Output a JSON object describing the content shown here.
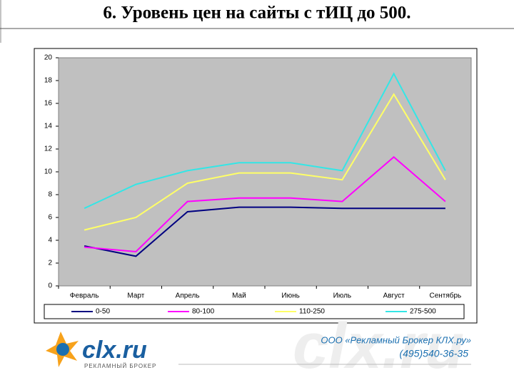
{
  "chart_data": {
    "type": "line",
    "title": "6. Уровень цен на сайты с тИЦ до 500.",
    "categories": [
      "Февраль",
      "Март",
      "Апрель",
      "Май",
      "Июнь",
      "Июль",
      "Август",
      "Сентябрь"
    ],
    "series": [
      {
        "name": "0-50",
        "color": "#000080",
        "values": [
          3.5,
          2.6,
          6.5,
          6.9,
          6.9,
          6.8,
          6.8,
          6.8
        ]
      },
      {
        "name": "80-100",
        "color": "#ff00ff",
        "values": [
          3.4,
          3.0,
          7.4,
          7.7,
          7.7,
          7.4,
          11.3,
          7.4
        ]
      },
      {
        "name": "110-250",
        "color": "#ffff66",
        "values": [
          4.9,
          6.0,
          9.0,
          9.9,
          9.9,
          9.3,
          16.8,
          9.3
        ]
      },
      {
        "name": "275-500",
        "color": "#33e6e6",
        "values": [
          6.8,
          8.9,
          10.1,
          10.8,
          10.8,
          10.1,
          18.6,
          10.1
        ]
      }
    ],
    "ylim": [
      0,
      20
    ],
    "yticks": [
      0,
      2,
      4,
      6,
      8,
      10,
      12,
      14,
      16,
      18,
      20
    ],
    "grid": false,
    "legend": "bottom"
  },
  "footer": {
    "logo": "clx.ru",
    "tagline": "РЕКЛАМНЫЙ БРОКЕР",
    "company": "ООО «Рекламный Брокер КЛХ.ру»",
    "phone": "(495)540-36-35"
  }
}
